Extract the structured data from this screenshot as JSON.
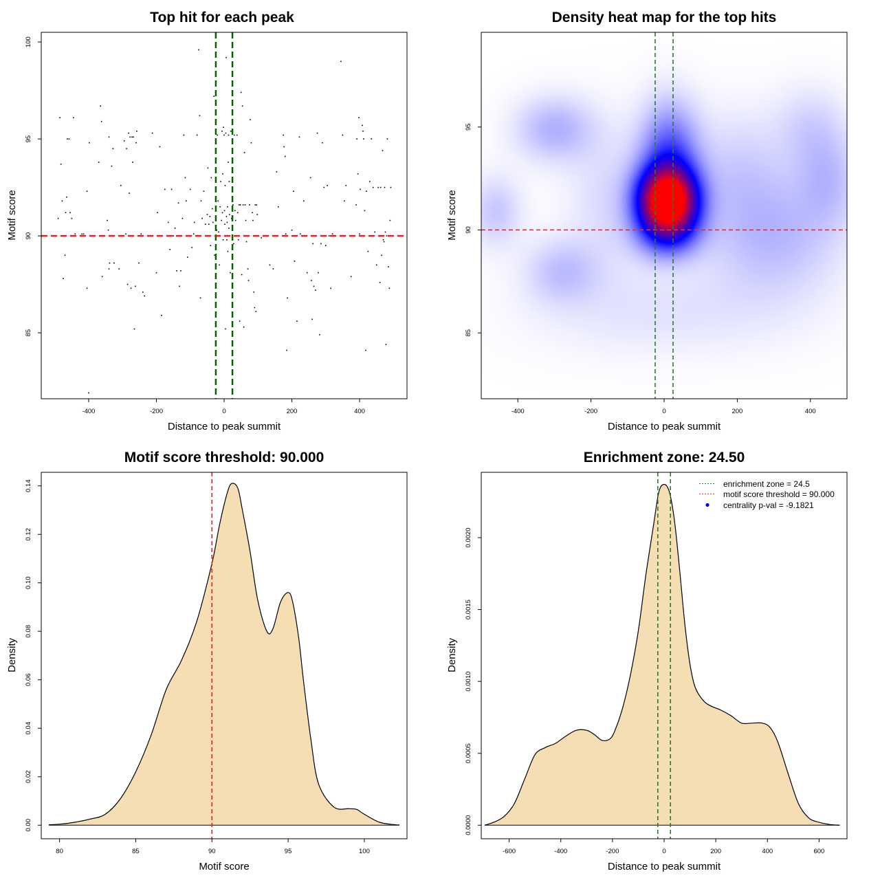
{
  "chart_data": [
    {
      "id": "scatter",
      "type": "scatter",
      "title": "Top hit for each peak",
      "xlabel": "Distance to peak summit",
      "ylabel": "Motif score",
      "xlim": [
        -540,
        540
      ],
      "ylim": [
        81.6,
        100.5
      ],
      "xticks": [
        -400,
        -200,
        0,
        200,
        400
      ],
      "yticks": [
        85,
        90,
        95,
        100
      ],
      "vlines": [
        -24.5,
        24.5
      ],
      "hline": 90,
      "line_colors": {
        "vertical": "#006400",
        "horizontal": "#dd2222"
      },
      "point_color": "#000000",
      "points": [
        [
          -490,
          90.9
        ],
        [
          -485,
          96.1
        ],
        [
          -482,
          93.7
        ],
        [
          -478,
          91.8
        ],
        [
          -475,
          87.8
        ],
        [
          -470,
          89
        ],
        [
          -468,
          91.2
        ],
        [
          -465,
          92
        ],
        [
          -463,
          95
        ],
        [
          -458,
          95
        ],
        [
          -455,
          91.2
        ],
        [
          -450,
          90.9
        ],
        [
          -445,
          96.1
        ],
        [
          -440,
          90.1
        ],
        [
          -420,
          90.1
        ],
        [
          -415,
          90.1
        ],
        [
          -405,
          92.3
        ],
        [
          -405,
          87.3
        ],
        [
          -400,
          81.9
        ],
        [
          -398,
          94.8
        ],
        [
          -370,
          93.8
        ],
        [
          -365,
          96.7
        ],
        [
          -362,
          95.9
        ],
        [
          -360,
          87.9
        ],
        [
          -345,
          90.8
        ],
        [
          -342,
          90.3
        ],
        [
          -340,
          95.1
        ],
        [
          -340,
          88.3
        ],
        [
          -338,
          88.6
        ],
        [
          -332,
          93.6
        ],
        [
          -328,
          94.5
        ],
        [
          -325,
          88.6
        ],
        [
          -310,
          88.3
        ],
        [
          -305,
          92.6
        ],
        [
          -295,
          94.9
        ],
        [
          -290,
          90.1
        ],
        [
          -288,
          94.5
        ],
        [
          -285,
          87.5
        ],
        [
          -282,
          95.3
        ],
        [
          -280,
          92.2
        ],
        [
          -278,
          95.1
        ],
        [
          -275,
          87.3
        ],
        [
          -272,
          95.1
        ],
        [
          -270,
          93.8
        ],
        [
          -268,
          95.1
        ],
        [
          -265,
          85.2
        ],
        [
          -262,
          87.4
        ],
        [
          -260,
          94.8
        ],
        [
          -258,
          95.4
        ],
        [
          -252,
          88.6
        ],
        [
          -245,
          90.1
        ],
        [
          -240,
          87.1
        ],
        [
          -235,
          86.9
        ],
        [
          -212,
          95.3
        ],
        [
          -200,
          88.1
        ],
        [
          -197,
          91.2
        ],
        [
          -190,
          94.6
        ],
        [
          -185,
          85.9
        ],
        [
          -175,
          92.4
        ],
        [
          -165,
          90.7
        ],
        [
          -160,
          89.3
        ],
        [
          -155,
          92.4
        ],
        [
          -150,
          90
        ],
        [
          -145,
          90.4
        ],
        [
          -140,
          88.2
        ],
        [
          -135,
          91.7
        ],
        [
          -132,
          87.4
        ],
        [
          -128,
          88.2
        ],
        [
          -123,
          90.9
        ],
        [
          -119,
          95.2
        ],
        [
          -115,
          93
        ],
        [
          -112,
          91.8
        ],
        [
          -108,
          88.9
        ],
        [
          -100,
          92.4
        ],
        [
          -95,
          89.4
        ],
        [
          -90,
          90.1
        ],
        [
          -88,
          90.7
        ],
        [
          -80,
          95.2
        ],
        [
          -75,
          99.6
        ],
        [
          -72,
          96.2
        ],
        [
          -70,
          86.8
        ],
        [
          -68,
          91.8
        ],
        [
          -65,
          90.9
        ],
        [
          -60,
          92.3
        ],
        [
          -55,
          90.6
        ],
        [
          -50,
          91.1
        ],
        [
          -48,
          93.5
        ],
        [
          -45,
          90.6
        ],
        [
          -42,
          91
        ],
        [
          -40,
          89.5
        ],
        [
          -38,
          93
        ],
        [
          -35,
          91.4
        ],
        [
          -33,
          90.7
        ],
        [
          -30,
          97.2
        ],
        [
          -28,
          89
        ],
        [
          -25,
          87.8
        ],
        [
          -22,
          90.3
        ],
        [
          -20,
          95.2
        ],
        [
          -18,
          91.8
        ],
        [
          -16,
          90.2
        ],
        [
          -14,
          88.5
        ],
        [
          -12,
          91.5
        ],
        [
          -10,
          92.8
        ],
        [
          -8,
          90.8
        ],
        [
          -6,
          95.4
        ],
        [
          -5,
          91.2
        ],
        [
          -4,
          93.2
        ],
        [
          -3,
          89.8
        ],
        [
          -2,
          95.6
        ],
        [
          0,
          95.2
        ],
        [
          1,
          91.3
        ],
        [
          2,
          90.6
        ],
        [
          3,
          92.6
        ],
        [
          4,
          85.2
        ],
        [
          5,
          95.3
        ],
        [
          6,
          99.2
        ],
        [
          7,
          91
        ],
        [
          8,
          89.8
        ],
        [
          9,
          90.7
        ],
        [
          10,
          91.5
        ],
        [
          11,
          89.2
        ],
        [
          12,
          93.8
        ],
        [
          13,
          95.2
        ],
        [
          14,
          90.4
        ],
        [
          15,
          92.8
        ],
        [
          16,
          91.1
        ],
        [
          18,
          88.1
        ],
        [
          20,
          95.4
        ],
        [
          22,
          90.9
        ],
        [
          24,
          93.8
        ],
        [
          26,
          91.6
        ],
        [
          28,
          89.6
        ],
        [
          30,
          95.2
        ],
        [
          32,
          91.3
        ],
        [
          34,
          90.8
        ],
        [
          35,
          90
        ],
        [
          38,
          95.2
        ],
        [
          40,
          91.2
        ],
        [
          42,
          89.8
        ],
        [
          44,
          91.6
        ],
        [
          46,
          85.6
        ],
        [
          48,
          91.6
        ],
        [
          50,
          97.4
        ],
        [
          52,
          88
        ],
        [
          54,
          96.7
        ],
        [
          56,
          91.6
        ],
        [
          58,
          85.3
        ],
        [
          60,
          94.3
        ],
        [
          62,
          91.6
        ],
        [
          64,
          90.8
        ],
        [
          66,
          89.7
        ],
        [
          70,
          88.3
        ],
        [
          72,
          87.7
        ],
        [
          75,
          91.6
        ],
        [
          77,
          96
        ],
        [
          80,
          94.8
        ],
        [
          83,
          91.2
        ],
        [
          85,
          90.8
        ],
        [
          88,
          87.1
        ],
        [
          90,
          86.3
        ],
        [
          92,
          91.6
        ],
        [
          94,
          86.1
        ],
        [
          96,
          91.6
        ],
        [
          98,
          91.1
        ],
        [
          110,
          89.9
        ],
        [
          135,
          88.5
        ],
        [
          145,
          88.3
        ],
        [
          155,
          93.3
        ],
        [
          160,
          91.5
        ],
        [
          175,
          95.2
        ],
        [
          177,
          94.6
        ],
        [
          180,
          94.1
        ],
        [
          182,
          90.1
        ],
        [
          185,
          84.1
        ],
        [
          187,
          86.8
        ],
        [
          200,
          90.3
        ],
        [
          205,
          92.3
        ],
        [
          208,
          88.7
        ],
        [
          215,
          85.6
        ],
        [
          222,
          95.1
        ],
        [
          225,
          90.1
        ],
        [
          235,
          91.8
        ],
        [
          240,
          90
        ],
        [
          245,
          88.1
        ],
        [
          255,
          93
        ],
        [
          258,
          87.7
        ],
        [
          260,
          85.7
        ],
        [
          262,
          89.6
        ],
        [
          265,
          87.4
        ],
        [
          270,
          87.2
        ],
        [
          275,
          95.3
        ],
        [
          278,
          88.1
        ],
        [
          282,
          84.9
        ],
        [
          286,
          89.6
        ],
        [
          290,
          94.8
        ],
        [
          295,
          92.5
        ],
        [
          300,
          89.5
        ],
        [
          305,
          92.6
        ],
        [
          310,
          90
        ],
        [
          315,
          87.3
        ],
        [
          320,
          90.1
        ],
        [
          345,
          99
        ],
        [
          350,
          95.2
        ],
        [
          355,
          91.8
        ],
        [
          360,
          92.6
        ],
        [
          375,
          87.9
        ],
        [
          390,
          91.6
        ],
        [
          392,
          95
        ],
        [
          395,
          93.2
        ],
        [
          398,
          96.1
        ],
        [
          400,
          90.1
        ],
        [
          402,
          92.4
        ],
        [
          405,
          90
        ],
        [
          408,
          95.7
        ],
        [
          410,
          95.4
        ],
        [
          412,
          95
        ],
        [
          415,
          91.3
        ],
        [
          418,
          84.1
        ],
        [
          420,
          92.3
        ],
        [
          425,
          89.2
        ],
        [
          430,
          92.8
        ],
        [
          435,
          95
        ],
        [
          440,
          92.5
        ],
        [
          445,
          90.2
        ],
        [
          450,
          88.5
        ],
        [
          455,
          92.5
        ],
        [
          460,
          87.6
        ],
        [
          462,
          92.5
        ],
        [
          465,
          89
        ],
        [
          468,
          94.4
        ],
        [
          470,
          89.8
        ],
        [
          472,
          89.7
        ],
        [
          474,
          92.5
        ],
        [
          476,
          90.2
        ],
        [
          478,
          84.4
        ],
        [
          480,
          90
        ],
        [
          482,
          95
        ],
        [
          485,
          88.4
        ],
        [
          488,
          87.3
        ],
        [
          490,
          90.8
        ],
        [
          492,
          92.5
        ]
      ]
    },
    {
      "id": "heatmap",
      "type": "heatmap",
      "title": "Density heat map for the top hits",
      "xlabel": "Distance to peak summit",
      "ylabel": "Motif score",
      "xlim": [
        -500,
        500
      ],
      "ylim": [
        81.8,
        99.6
      ],
      "xticks": [
        -400,
        -200,
        0,
        200,
        400
      ],
      "yticks": [
        85,
        90,
        95
      ],
      "vlines": [
        -24.5,
        24.5
      ],
      "hline": 90,
      "line_colors": {
        "vertical": "#2a7a2a",
        "horizontal": "#dd3333"
      },
      "colors": [
        "#ffffff",
        "#0000ff",
        "#ff0000"
      ],
      "density_peaks": [
        {
          "x": 10,
          "y": 91.4,
          "weight": 3.4,
          "sx": 55,
          "sy": 1.1
        },
        {
          "x": 15,
          "y": 93.5,
          "weight": 0.95,
          "sx": 55,
          "sy": 1.8
        },
        {
          "x": 10,
          "y": 89.8,
          "weight": 0.7,
          "sx": 60,
          "sy": 0.9
        },
        {
          "x": -300,
          "y": 94.9,
          "weight": 0.42,
          "sx": 75,
          "sy": 1.1
        },
        {
          "x": -280,
          "y": 88,
          "weight": 0.32,
          "sx": 70,
          "sy": 1.1
        },
        {
          "x": 300,
          "y": 89.8,
          "weight": 0.38,
          "sx": 130,
          "sy": 2.1
        },
        {
          "x": 450,
          "y": 92.5,
          "weight": 0.3,
          "sx": 60,
          "sy": 1.6
        },
        {
          "x": -460,
          "y": 90.9,
          "weight": 0.3,
          "sx": 50,
          "sy": 1.2
        },
        {
          "x": 200,
          "y": 93,
          "weight": 0.22,
          "sx": 90,
          "sy": 2.0
        },
        {
          "x": -150,
          "y": 91.5,
          "weight": 0.2,
          "sx": 80,
          "sy": 2.5
        },
        {
          "x": 400,
          "y": 95,
          "weight": 0.22,
          "sx": 70,
          "sy": 1.4
        },
        {
          "x": 0,
          "y": 86,
          "weight": 0.15,
          "sx": 250,
          "sy": 1.5
        }
      ]
    },
    {
      "id": "score_density",
      "type": "area",
      "title": "Motif score threshold: 90.000",
      "xlabel": "Motif score",
      "ylabel": "Density",
      "xlim": [
        78.8,
        102.8
      ],
      "ylim": [
        -0.0056,
        0.1456
      ],
      "xticks": [
        80,
        85,
        90,
        95,
        100
      ],
      "yticks": [
        0.0,
        0.02,
        0.04,
        0.06,
        0.08,
        0.1,
        0.12,
        0.14
      ],
      "ytick_labels": [
        "0.00",
        "0.02",
        "0.04",
        "0.06",
        "0.08",
        "0.10",
        "0.12",
        "0.14"
      ],
      "vline": 90,
      "fill_color": "#f5deb3",
      "line_color": "#dd2222",
      "x": [
        79.3,
        80,
        81,
        82,
        83,
        84,
        85,
        86,
        87,
        88,
        89,
        90,
        90.5,
        91,
        91.3,
        91.7,
        92,
        92.5,
        93,
        93.6,
        94,
        94.5,
        95,
        95.3,
        95.7,
        96,
        96.5,
        97,
        98,
        99,
        99.5,
        100,
        101,
        102,
        102.3
      ],
      "y": [
        0.0002,
        0.0004,
        0.0012,
        0.0025,
        0.0045,
        0.011,
        0.022,
        0.037,
        0.056,
        0.068,
        0.084,
        0.108,
        0.124,
        0.137,
        0.141,
        0.139,
        0.13,
        0.113,
        0.093,
        0.08,
        0.081,
        0.092,
        0.096,
        0.092,
        0.077,
        0.06,
        0.035,
        0.017,
        0.0075,
        0.0068,
        0.0065,
        0.0045,
        0.0012,
        0.0002,
        0.0001
      ]
    },
    {
      "id": "distance_density",
      "type": "area",
      "title": "Enrichment zone: 24.50",
      "xlabel": "Distance to peak summit",
      "ylabel": "Density",
      "xlim": [
        -708,
        708
      ],
      "ylim": [
        -9.44e-05,
        0.0024544
      ],
      "xticks": [
        -600,
        -400,
        -200,
        0,
        200,
        400,
        600
      ],
      "yticks": [
        0.0,
        0.0005,
        0.001,
        0.0015,
        0.002
      ],
      "ytick_labels": [
        "0.0000",
        "0.0005",
        "0.0010",
        "0.0015",
        "0.0020"
      ],
      "vlines": [
        -24.5,
        24.5
      ],
      "fill_color": "#f5deb3",
      "line_color": "#2a7a2a",
      "x": [
        -695,
        -660,
        -620,
        -580,
        -540,
        -500,
        -460,
        -420,
        -380,
        -340,
        -300,
        -270,
        -240,
        -210,
        -190,
        -160,
        -130,
        -100,
        -70,
        -40,
        -20,
        0,
        20,
        40,
        60,
        80,
        100,
        120,
        150,
        180,
        220,
        260,
        300,
        340,
        380,
        410,
        440,
        480,
        520,
        560,
        600,
        640,
        680
      ],
      "y": [
        0.0,
        2e-05,
        6e-05,
        0.00015,
        0.00032,
        0.00049,
        0.00054,
        0.00057,
        0.00062,
        0.00066,
        0.00066,
        0.00063,
        0.00059,
        0.0006,
        0.00066,
        0.00082,
        0.00105,
        0.00135,
        0.00175,
        0.0021,
        0.00232,
        0.00237,
        0.00232,
        0.00212,
        0.00178,
        0.0014,
        0.00112,
        0.00096,
        0.00087,
        0.00083,
        0.0008,
        0.00076,
        0.00071,
        0.00071,
        0.00071,
        0.00068,
        0.00058,
        0.00036,
        0.00015,
        5e-05,
        2e-05,
        5e-06,
        0.0
      ],
      "legend": {
        "position": "top-right",
        "items": [
          {
            "label": "enrichment zone = 24.5",
            "color": "#2a7a2a",
            "style": "dotted-line"
          },
          {
            "label": "motif score threshold = 90.000",
            "color": "#dd3333",
            "style": "dotted-line"
          },
          {
            "label": "centrality p-val = -9.1821",
            "color": "#0000ff",
            "style": "point"
          }
        ]
      }
    }
  ]
}
